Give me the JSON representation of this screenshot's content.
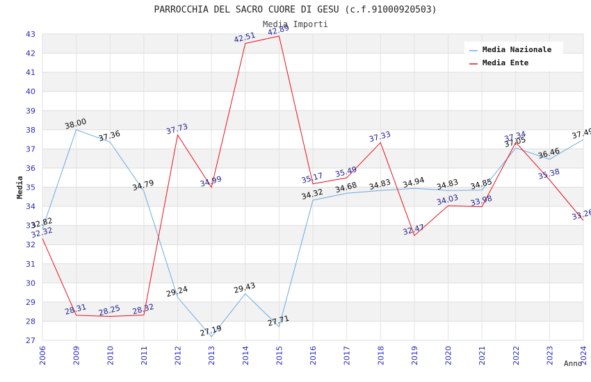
{
  "chart_data": {
    "type": "line",
    "title": "PARROCCHIA DEL SACRO CUORE DI GESU (c.f.91000920503)",
    "subtitle": "Media Importi",
    "xlabel": "Anno",
    "ylabel": "Media",
    "ylim": [
      27,
      43
    ],
    "grid": true,
    "legend_position": "top-right",
    "x": [
      "2006",
      "2009",
      "2010",
      "2011",
      "2012",
      "2013",
      "2014",
      "2015",
      "2016",
      "2017",
      "2018",
      "2019",
      "2020",
      "2021",
      "2022",
      "2023",
      "2024"
    ],
    "y_ticks": [
      "27",
      "28",
      "29",
      "30",
      "31",
      "32",
      "33",
      "34",
      "35",
      "36",
      "37",
      "38",
      "39",
      "40",
      "41",
      "42",
      "43"
    ],
    "series": [
      {
        "name": "Media Nazionale",
        "color": "#6aaae4",
        "label_color": "#000000",
        "values": [
          32.82,
          38.0,
          37.36,
          34.79,
          29.24,
          27.19,
          29.43,
          27.71,
          34.32,
          34.68,
          34.83,
          34.94,
          34.83,
          34.85,
          37.05,
          36.46,
          37.49
        ],
        "labels": [
          "32.82",
          "38.00",
          "37.36",
          "34.79",
          "29.24",
          "27.19",
          "29.43",
          "27.71",
          "34.32",
          "34.68",
          "34.83",
          "34.94",
          "34.83",
          "34.85",
          "37.05",
          "36.46",
          "37.49"
        ]
      },
      {
        "name": "Media Ente",
        "color": "#e8101a",
        "label_color": "#1a1a8c",
        "values": [
          32.32,
          28.31,
          28.25,
          28.32,
          37.73,
          34.99,
          42.51,
          42.89,
          35.17,
          35.49,
          37.33,
          32.47,
          34.03,
          33.98,
          37.34,
          35.38,
          33.26
        ],
        "labels": [
          "32.32",
          "28.31",
          "28.25",
          "28.32",
          "37.73",
          "34.99",
          "42.51",
          "42.89",
          "35.17",
          "35.49",
          "37.33",
          "32.47",
          "34.03",
          "33.98",
          "37.34",
          "35.38",
          "33.26"
        ]
      }
    ]
  }
}
